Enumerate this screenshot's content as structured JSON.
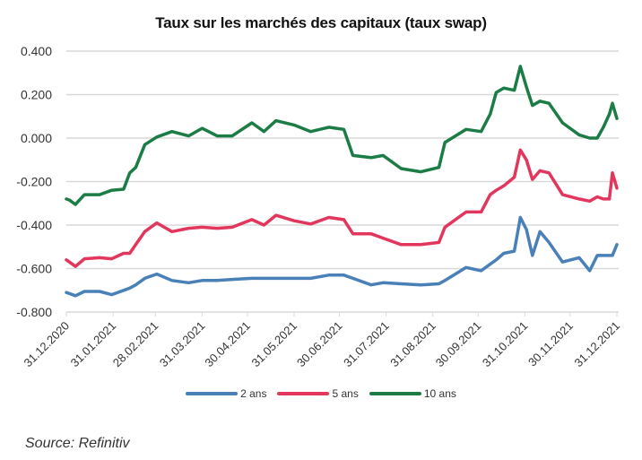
{
  "chart_data": {
    "type": "line",
    "title": "Taux sur les marchés des capitaux (taux swap)",
    "xlabel": "",
    "ylabel": "",
    "ylim": [
      -0.8,
      0.4
    ],
    "yticks": [
      "0.400",
      "0.200",
      "0.000",
      "-0.200",
      "-0.400",
      "-0.600",
      "-0.800"
    ],
    "ytick_values": [
      0.4,
      0.2,
      0.0,
      -0.2,
      -0.4,
      -0.6,
      -0.8
    ],
    "xlim": [
      "2020-12-31",
      "2021-12-31"
    ],
    "xticks": [
      "31.12.2020",
      "31.01.2021",
      "28.02.2021",
      "31.03.2021",
      "30.04.2021",
      "31.05.2021",
      "30.06.2021",
      "31.07.2021",
      "31.08.2021",
      "30.09.2021",
      "31.10.2021",
      "30.11.2021",
      "31.12.2021"
    ],
    "xtick_dates": [
      "2020-12-31",
      "2021-01-31",
      "2021-02-28",
      "2021-03-31",
      "2021-04-30",
      "2021-05-31",
      "2021-06-30",
      "2021-07-31",
      "2021-08-31",
      "2021-09-30",
      "2021-10-31",
      "2021-11-30",
      "2021-12-31"
    ],
    "grid": "horizontal",
    "legend_position": "bottom",
    "x": [
      "2020-12-31",
      "2021-01-02",
      "2021-01-06",
      "2021-01-12",
      "2021-01-22",
      "2021-01-30",
      "2021-02-07",
      "2021-02-11",
      "2021-02-15",
      "2021-02-21",
      "2021-03-01",
      "2021-03-11",
      "2021-03-22",
      "2021-03-31",
      "2021-04-10",
      "2021-04-20",
      "2021-05-03",
      "2021-05-11",
      "2021-05-19",
      "2021-05-31",
      "2021-06-11",
      "2021-06-23",
      "2021-07-03",
      "2021-07-09",
      "2021-07-21",
      "2021-07-29",
      "2021-08-10",
      "2021-08-23",
      "2021-09-04",
      "2021-09-08",
      "2021-09-22",
      "2021-10-02",
      "2021-10-08",
      "2021-10-12",
      "2021-10-17",
      "2021-10-24",
      "2021-10-28",
      "2021-11-01",
      "2021-11-05",
      "2021-11-10",
      "2021-11-16",
      "2021-11-25",
      "2021-12-06",
      "2021-12-13",
      "2021-12-18",
      "2021-12-22",
      "2021-12-26",
      "2021-12-28",
      "2021-12-31"
    ],
    "series": [
      {
        "name": "2 ans",
        "color": "#4a80b8",
        "values": [
          -0.71,
          -0.715,
          -0.725,
          -0.705,
          -0.705,
          -0.72,
          -0.7,
          -0.69,
          -0.675,
          -0.645,
          -0.625,
          -0.655,
          -0.665,
          -0.655,
          -0.655,
          -0.65,
          -0.645,
          -0.645,
          -0.645,
          -0.645,
          -0.645,
          -0.63,
          -0.63,
          -0.645,
          -0.675,
          -0.665,
          -0.67,
          -0.675,
          -0.67,
          -0.655,
          -0.595,
          -0.61,
          -0.58,
          -0.56,
          -0.53,
          -0.52,
          -0.365,
          -0.42,
          -0.54,
          -0.43,
          -0.48,
          -0.57,
          -0.55,
          -0.61,
          -0.54,
          -0.54,
          -0.54,
          -0.54,
          -0.49
        ]
      },
      {
        "name": "5 ans",
        "color": "#e2365c",
        "values": [
          -0.56,
          -0.57,
          -0.59,
          -0.555,
          -0.55,
          -0.555,
          -0.53,
          -0.53,
          -0.49,
          -0.43,
          -0.39,
          -0.43,
          -0.415,
          -0.41,
          -0.415,
          -0.41,
          -0.375,
          -0.4,
          -0.355,
          -0.38,
          -0.395,
          -0.365,
          -0.375,
          -0.44,
          -0.44,
          -0.46,
          -0.49,
          -0.49,
          -0.48,
          -0.41,
          -0.34,
          -0.34,
          -0.26,
          -0.24,
          -0.22,
          -0.18,
          -0.055,
          -0.1,
          -0.19,
          -0.15,
          -0.16,
          -0.26,
          -0.28,
          -0.29,
          -0.27,
          -0.28,
          -0.28,
          -0.16,
          -0.23
        ]
      },
      {
        "name": "10 ans",
        "color": "#1b7d45",
        "values": [
          -0.28,
          -0.285,
          -0.305,
          -0.26,
          -0.26,
          -0.24,
          -0.235,
          -0.16,
          -0.135,
          -0.03,
          0.005,
          0.03,
          0.01,
          0.045,
          0.01,
          0.01,
          0.07,
          0.03,
          0.08,
          0.06,
          0.03,
          0.05,
          0.04,
          -0.08,
          -0.09,
          -0.08,
          -0.14,
          -0.155,
          -0.135,
          -0.02,
          0.04,
          0.03,
          0.11,
          0.21,
          0.23,
          0.22,
          0.33,
          0.235,
          0.15,
          0.17,
          0.16,
          0.07,
          0.015,
          0.0,
          0.0,
          0.05,
          0.11,
          0.16,
          0.09
        ]
      }
    ]
  },
  "source": "Source: Refinitiv"
}
